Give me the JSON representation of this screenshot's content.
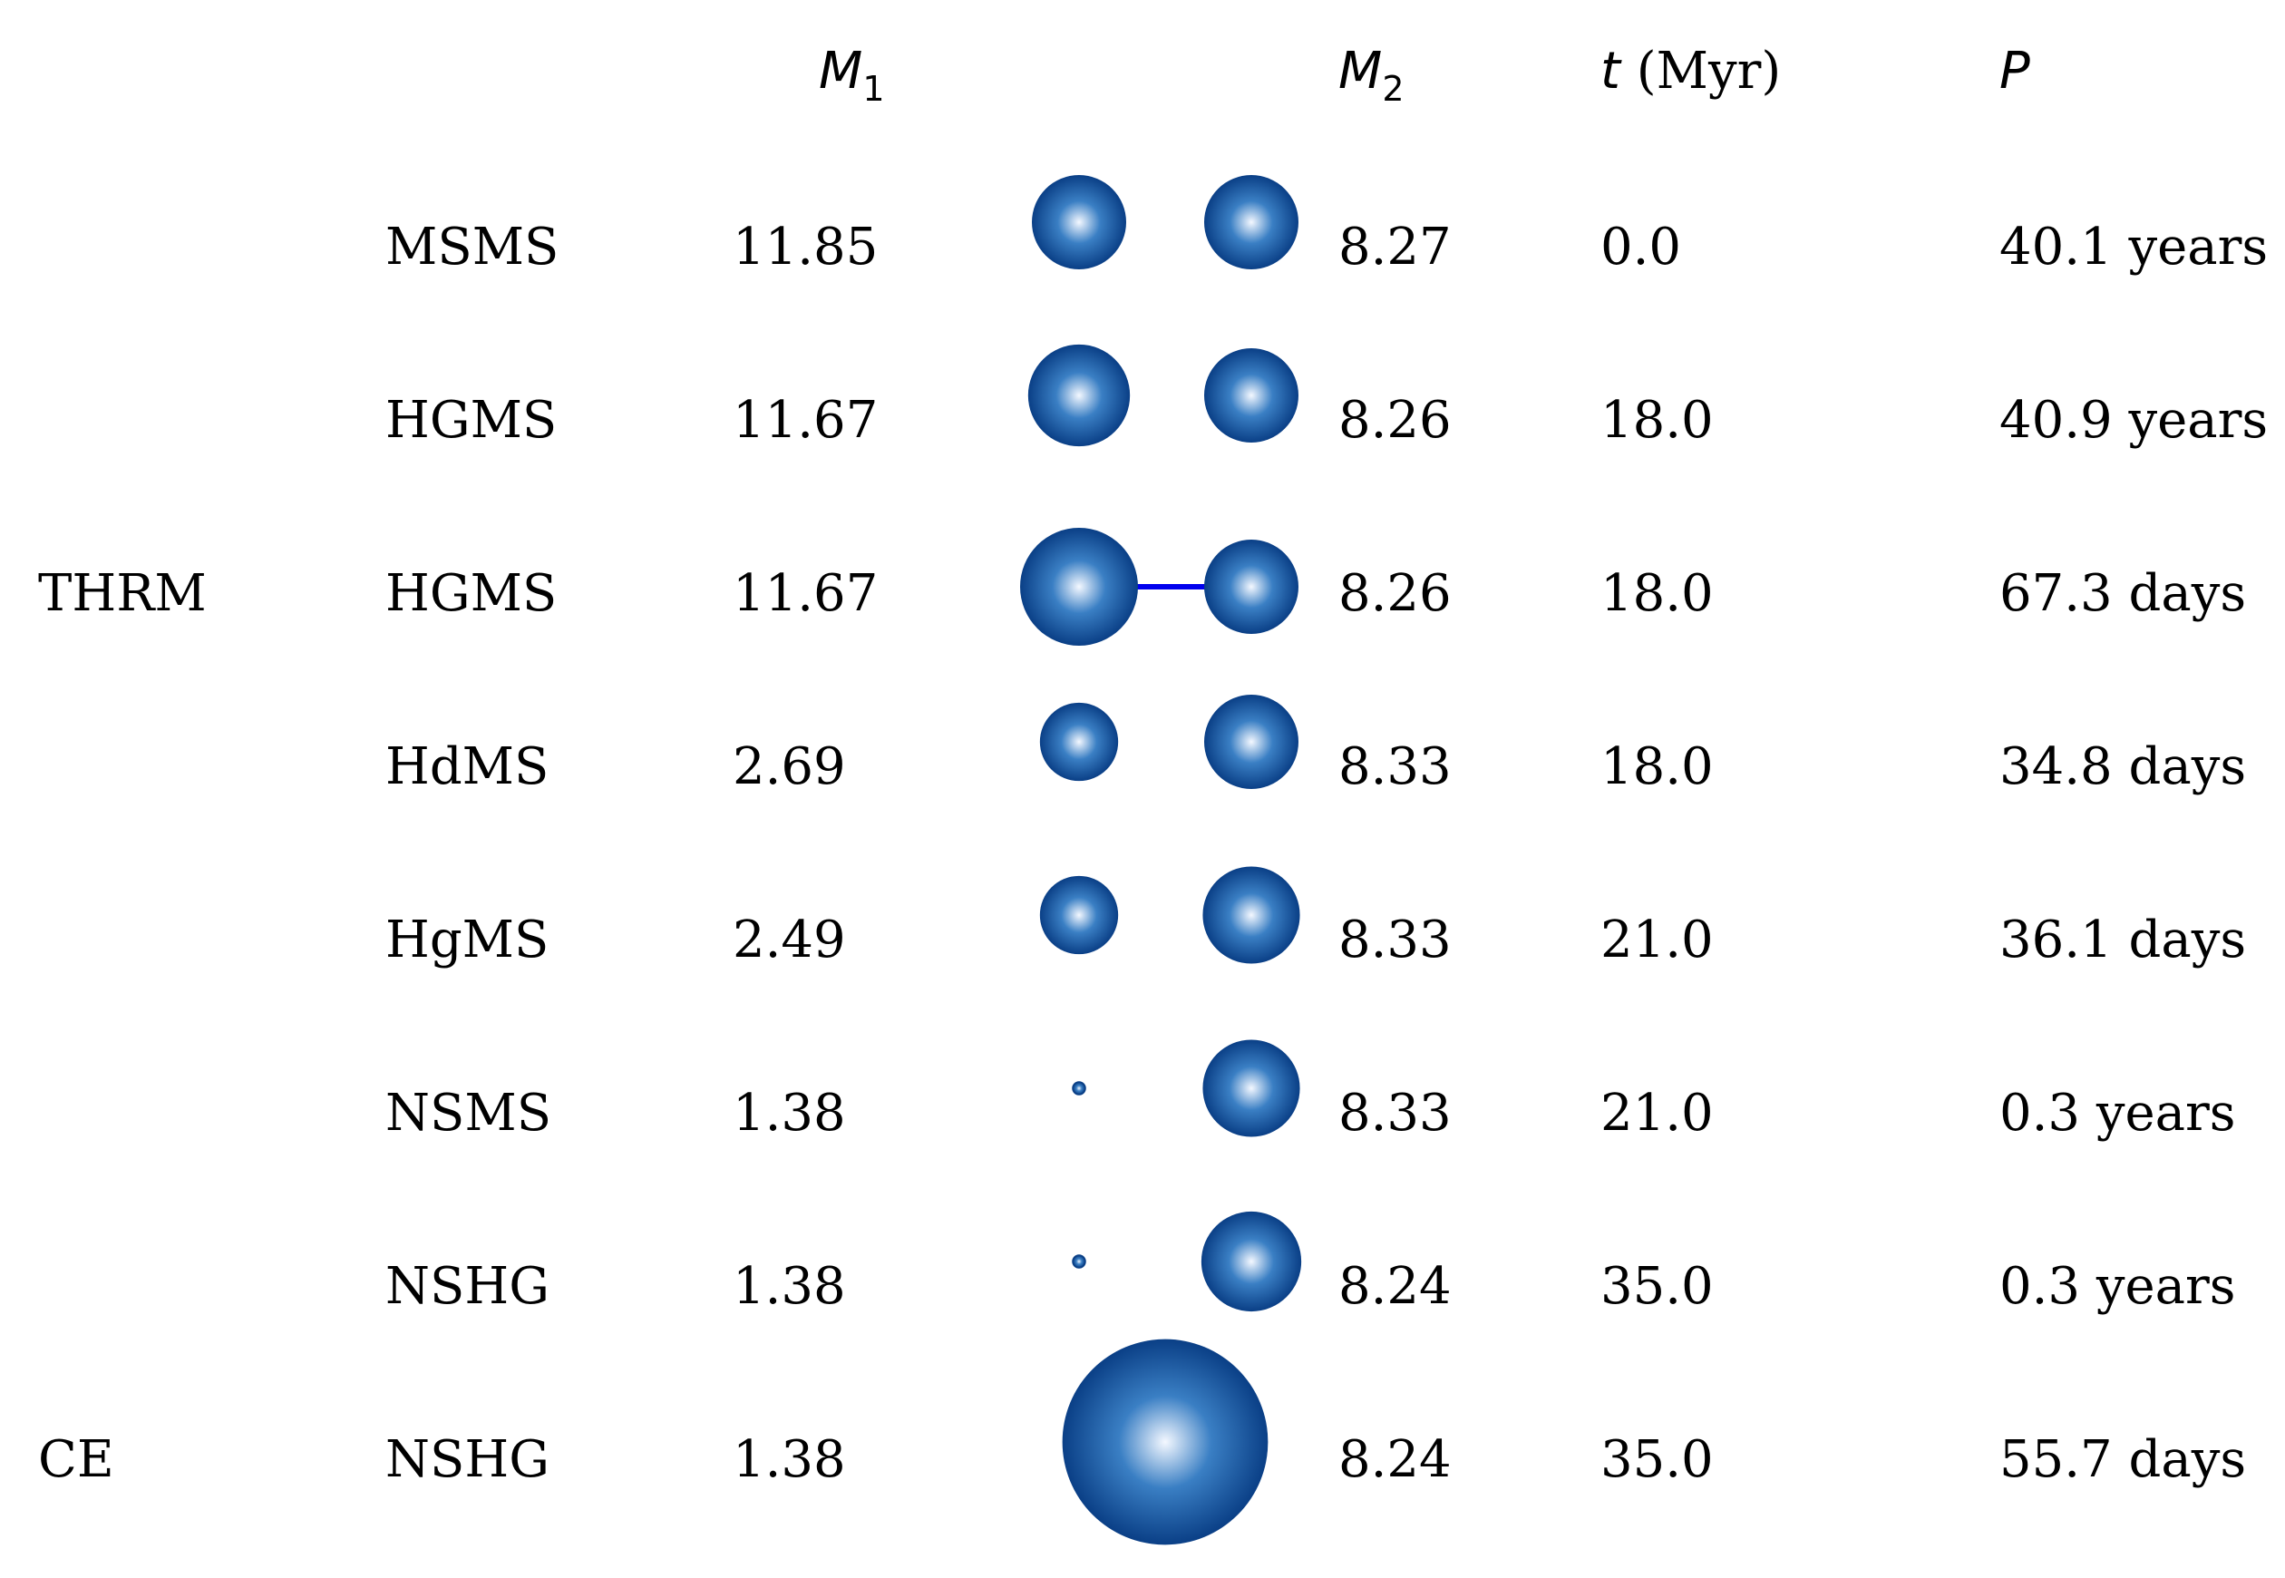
{
  "header": {
    "m1_symbol": "M",
    "m1_subscript": "1",
    "m2_symbol": "M",
    "m2_subscript": "2",
    "t_symbol": "t",
    "t_unit": " (Myr)",
    "p_symbol": "P"
  },
  "star_gradient": {
    "center": "#f4f8ff",
    "mid": "#3a7fc4",
    "edge": "#0a3f86"
  },
  "bridge_color": "#0000ee",
  "rows": [
    {
      "phase": "",
      "types": "MSMS",
      "m1": "11.85",
      "m2": "8.27",
      "t": "0.0",
      "p": "40.1 years",
      "r1": 1.0,
      "r2": 1.0,
      "merged": false,
      "bridge": false
    },
    {
      "phase": "",
      "types": "HGMS",
      "m1": "11.67",
      "m2": "8.26",
      "t": "18.0",
      "p": "40.9 years",
      "r1": 1.08,
      "r2": 1.0,
      "merged": false,
      "bridge": false
    },
    {
      "phase": "THRM",
      "types": "HGMS",
      "m1": "11.67",
      "m2": "8.26",
      "t": "18.0",
      "p": "67.3 days",
      "r1": 1.25,
      "r2": 1.0,
      "merged": false,
      "bridge": true
    },
    {
      "phase": "",
      "types": "HdMS",
      "m1": "2.69",
      "m2": "8.33",
      "t": "18.0",
      "p": "34.8 days",
      "r1": 0.83,
      "r2": 1.0,
      "merged": false,
      "bridge": false
    },
    {
      "phase": "",
      "types": "HgMS",
      "m1": "2.49",
      "m2": "8.33",
      "t": "21.0",
      "p": "36.1 days",
      "r1": 0.83,
      "r2": 1.03,
      "merged": false,
      "bridge": false
    },
    {
      "phase": "",
      "types": "NSMS",
      "m1": "1.38",
      "m2": "8.33",
      "t": "21.0",
      "p": "0.3 years",
      "r1": 0.13,
      "r2": 1.03,
      "merged": false,
      "bridge": false
    },
    {
      "phase": "",
      "types": "NSHG",
      "m1": "1.38",
      "m2": "8.24",
      "t": "35.0",
      "p": "0.3 years",
      "r1": 0.13,
      "r2": 1.06,
      "merged": false,
      "bridge": false
    },
    {
      "phase": "CE",
      "types": "NSHG",
      "m1": "1.38",
      "m2": "8.24",
      "t": "35.0",
      "p": "55.7 days",
      "r1": 2.18,
      "r2": 0,
      "merged": true,
      "bridge": false
    }
  ]
}
